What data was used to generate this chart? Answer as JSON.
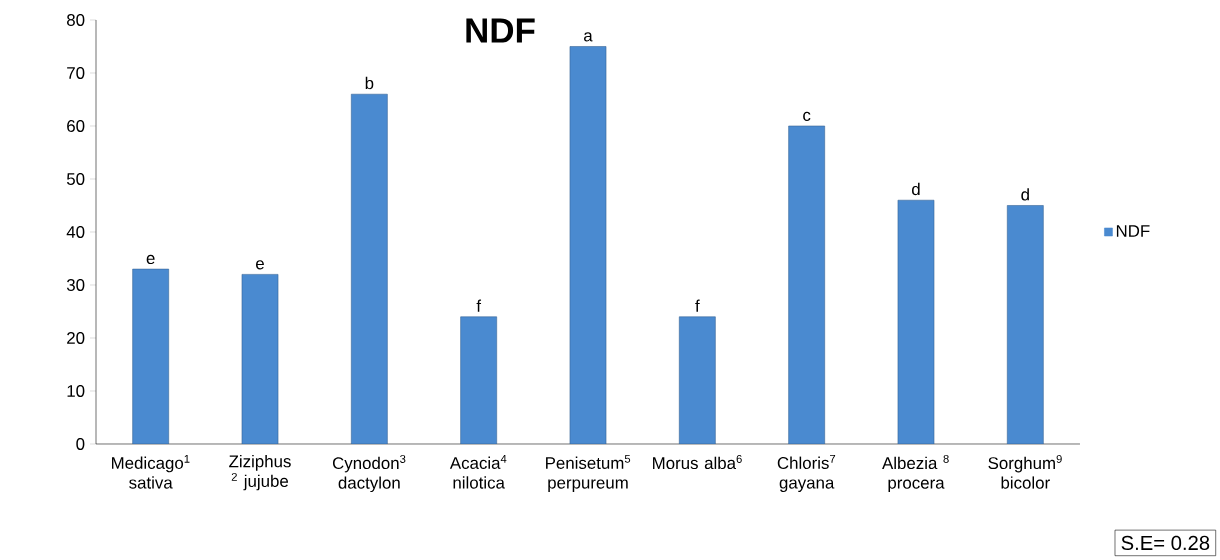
{
  "chart_data": {
    "type": "bar",
    "title": "NDF",
    "categories": [
      "Medicago$^{1}$ sativa",
      "Ziziphus $^{2}$ jujube",
      "Cynodon$^{3}$ dactylon",
      "Acacia$^{4}$ nilotica",
      "Penisetum$^{5}$ perpureum",
      "Morus alba$^{6}$",
      "Chloris$^{7}$ gayana",
      "Albezia $^{8}$ procera",
      "Sorghum$^{9}$ bicolor"
    ],
    "series": [
      {
        "name": "NDF",
        "color": "#4a8ad0",
        "values": [
          33,
          32,
          66,
          24,
          75,
          24,
          60,
          46,
          45
        ],
        "value_labels": [
          "e",
          "e",
          "b",
          "f",
          "a",
          "f",
          "c",
          "d",
          "d"
        ]
      }
    ],
    "ylim": [
      0,
      80
    ],
    "yticks": [
      0,
      10,
      20,
      30,
      40,
      50,
      60,
      70,
      80
    ],
    "grid": false,
    "legend": "right",
    "annotations": [
      "S.E= 0.28"
    ]
  }
}
